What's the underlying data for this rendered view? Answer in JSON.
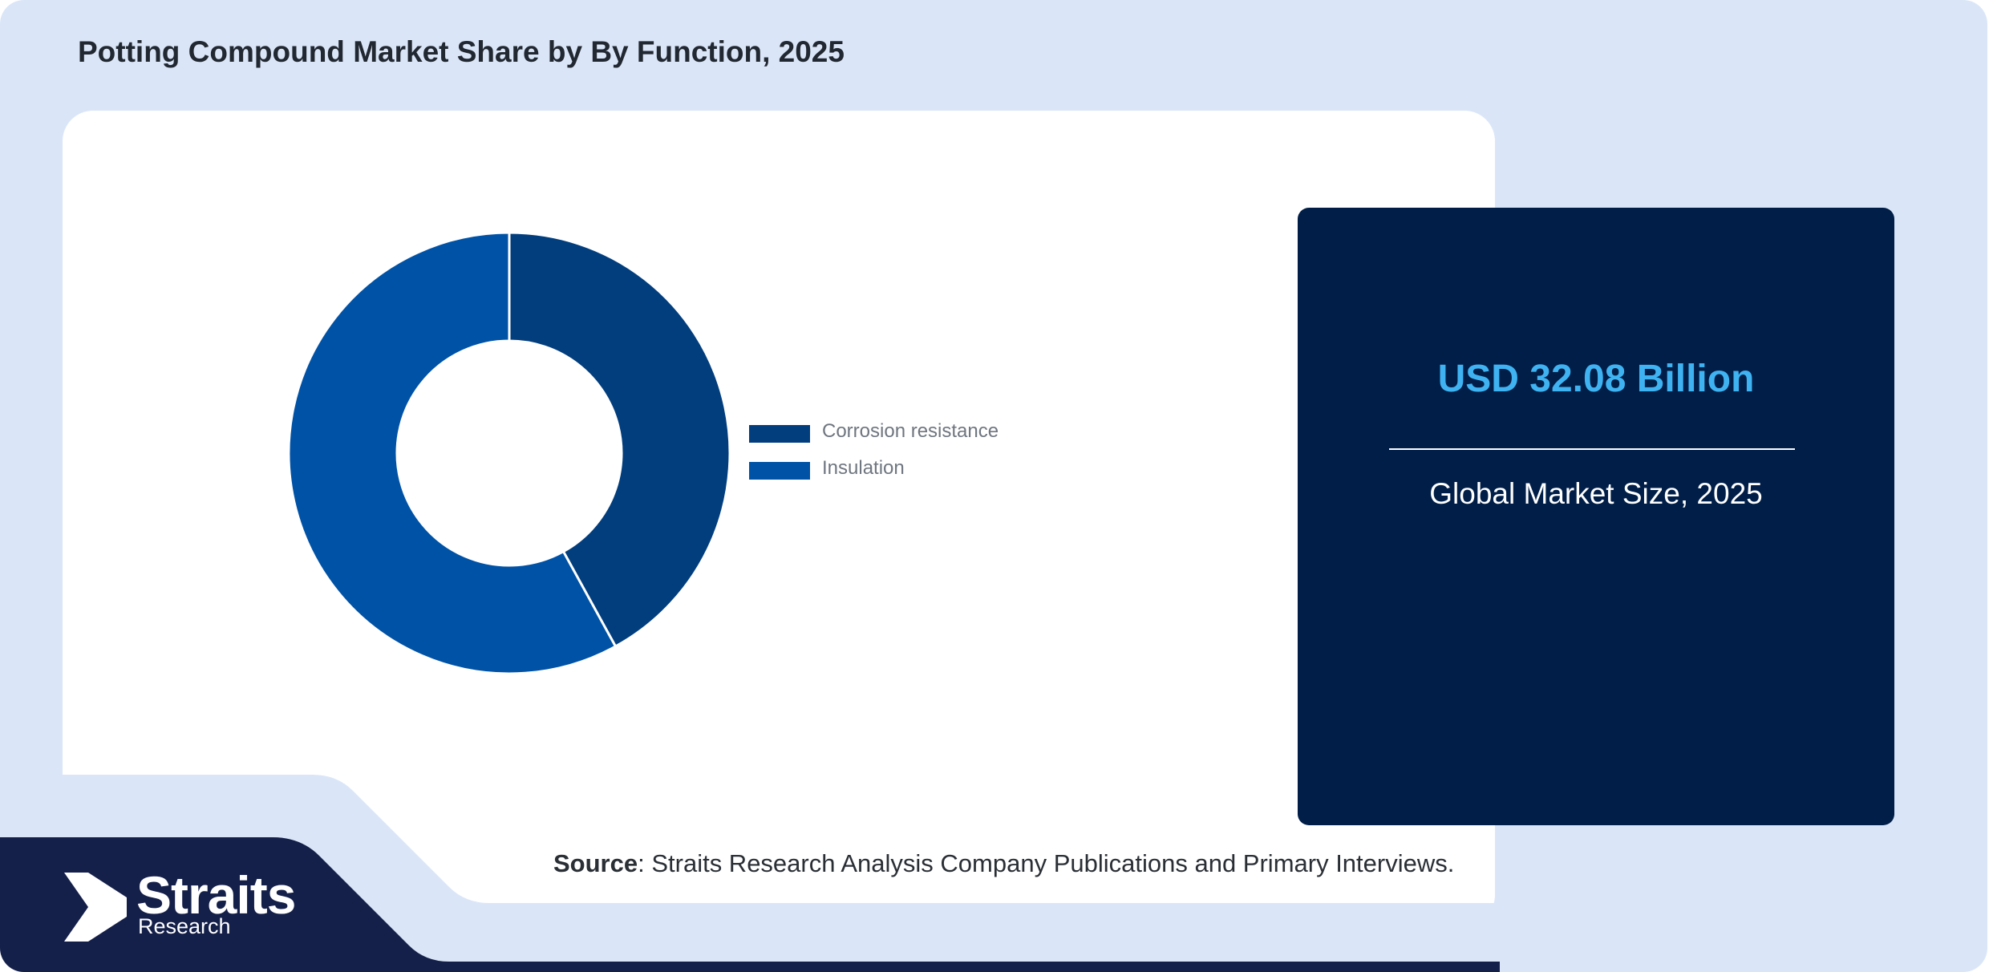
{
  "header": {
    "title": "Potting Compound Market Share by By Function, 2025"
  },
  "chart_data": {
    "type": "pie",
    "donut": true,
    "categories": [
      "Corrosion resistance",
      "Insulation"
    ],
    "values": [
      42,
      58
    ],
    "colors": [
      "#023e7d",
      "#0052a6"
    ],
    "legend": [
      "Corrosion resistance",
      "Insulation"
    ],
    "legend_position": "right"
  },
  "stat": {
    "value": "USD 32.08 Billion",
    "label": "Global Market Size, 2025"
  },
  "source": {
    "label": "Source",
    "text": ": Straits Research Analysis Company Publications and Primary Interviews."
  },
  "brand": {
    "name": "Straits",
    "sub": "Research"
  },
  "colors": {
    "background": "#dae6f8",
    "card": "#ffffff",
    "stat_card": "#001e47",
    "stat_value": "#3fb3f2",
    "brand_band": "#15204a"
  }
}
